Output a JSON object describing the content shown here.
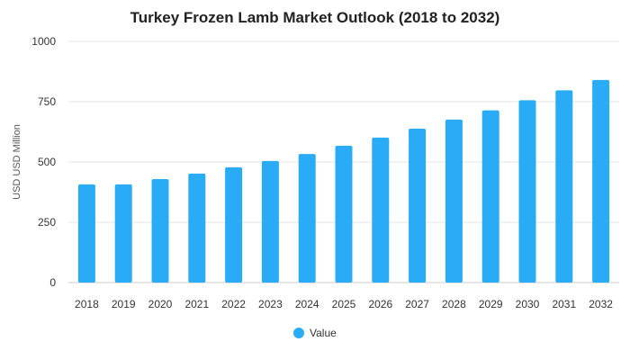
{
  "colors": {
    "bar": "#29abf5",
    "grid": "#e6e6e6",
    "text": "#333333"
  },
  "chart_data": {
    "type": "bar",
    "title": "Turkey Frozen Lamb Market Outlook (2018 to 2032)",
    "xlabel": "",
    "ylabel": "USD USD Million",
    "ylim": [
      0,
      1000
    ],
    "yticks": [
      0,
      250,
      500,
      750,
      1000
    ],
    "grid": true,
    "legend_position": "bottom",
    "categories": [
      "2018",
      "2019",
      "2020",
      "2021",
      "2022",
      "2023",
      "2024",
      "2025",
      "2026",
      "2027",
      "2028",
      "2029",
      "2030",
      "2031",
      "2032"
    ],
    "series": [
      {
        "name": "Value",
        "values": [
          407,
          407,
          429,
          452,
          478,
          504,
          533,
          567,
          601,
          638,
          676,
          714,
          756,
          797,
          840
        ]
      }
    ]
  }
}
